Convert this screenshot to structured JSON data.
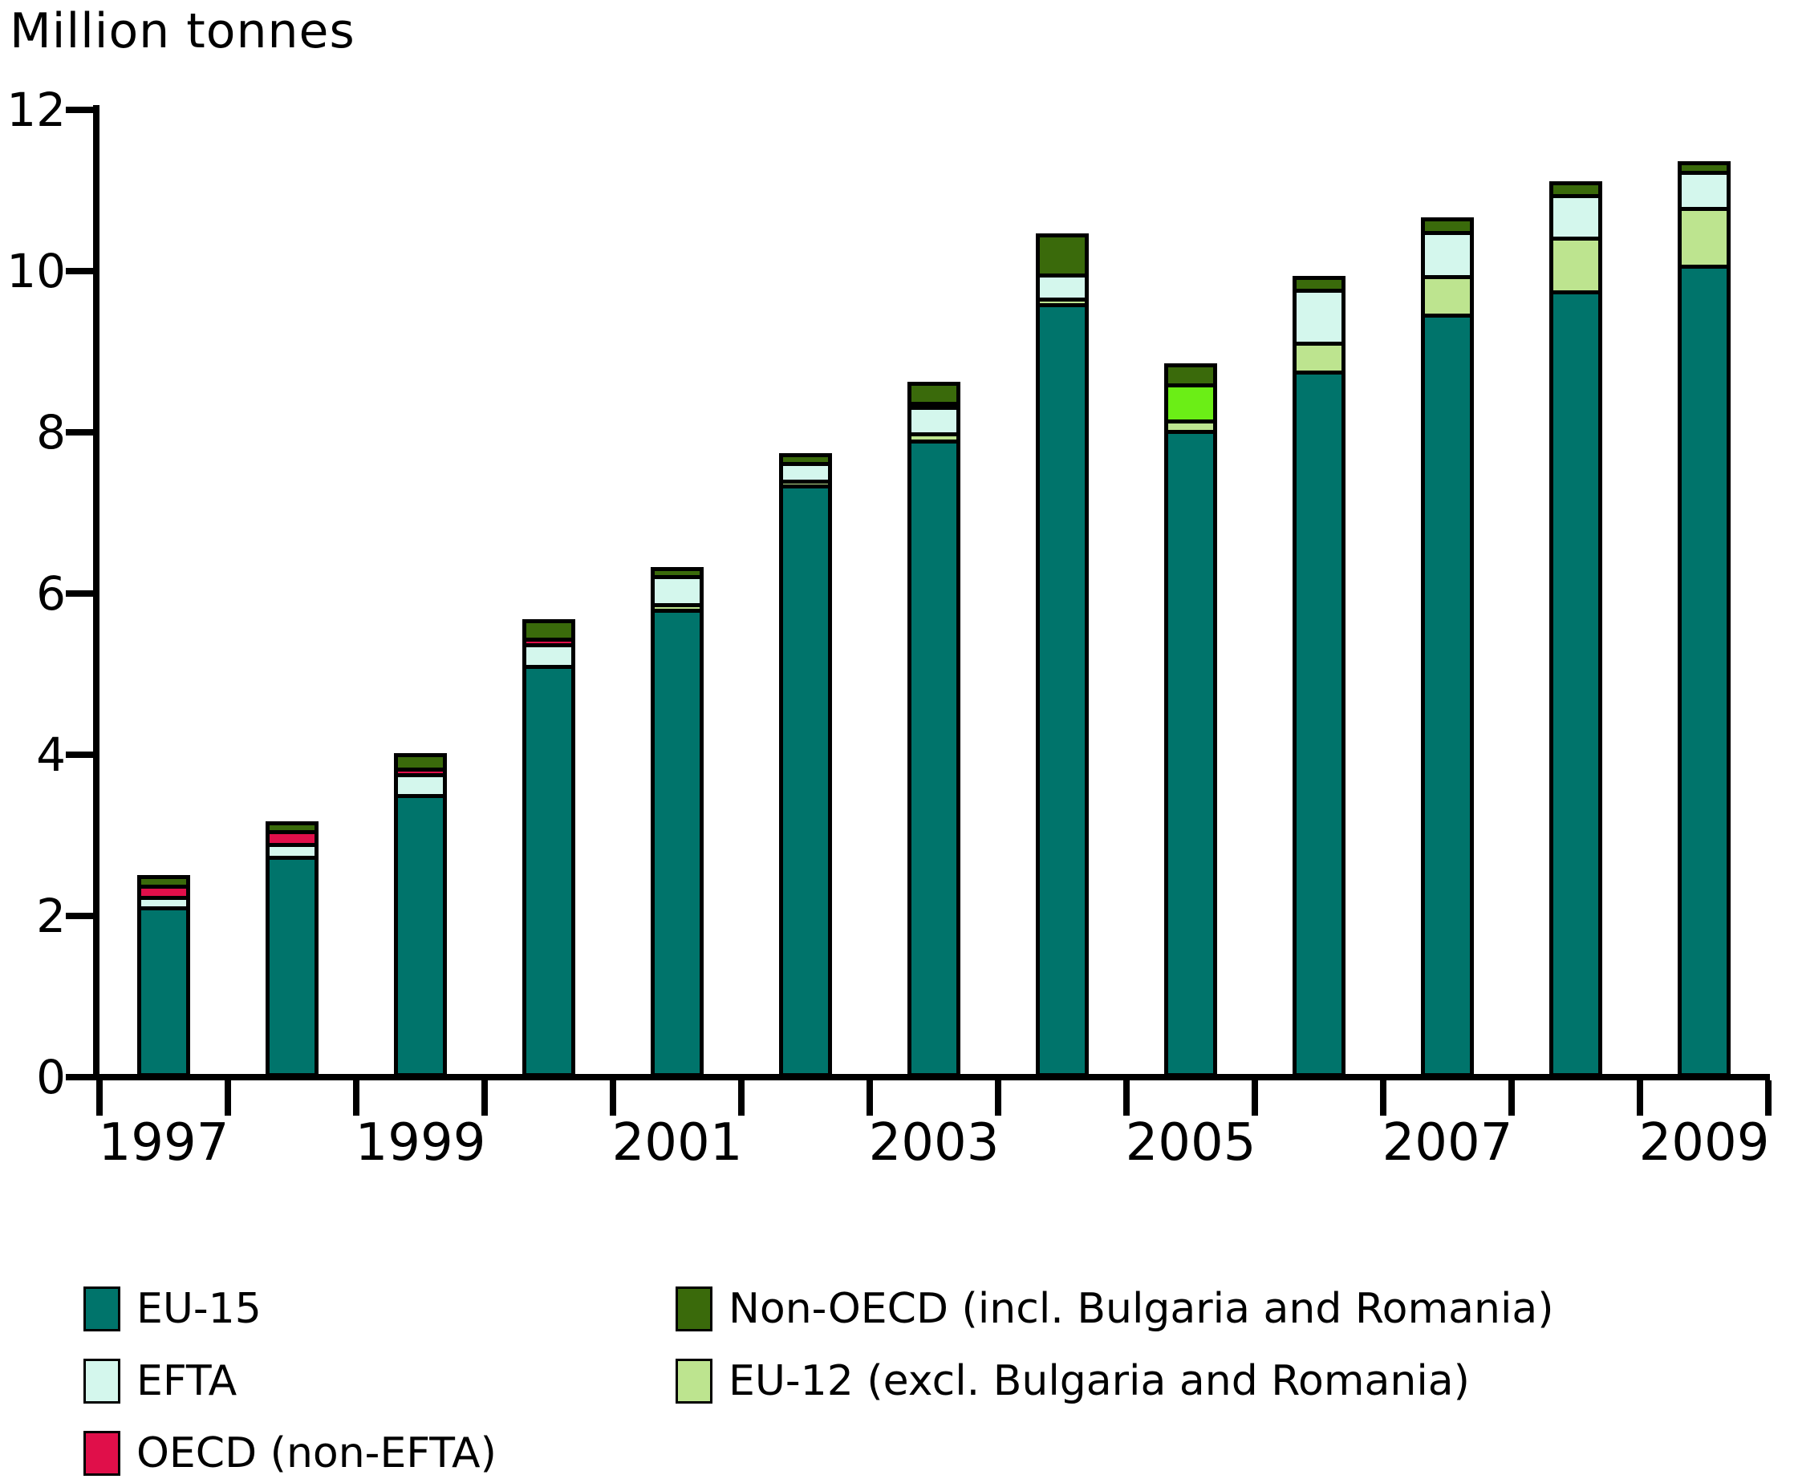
{
  "title": "Million tonnes",
  "chart_data": {
    "type": "bar",
    "stacked": true,
    "title": "Million tonnes",
    "ylabel": "Million tonnes",
    "xlabel": "",
    "grid": false,
    "legend_position": "bottom",
    "ylim": [
      0,
      12
    ],
    "yticks": [
      0,
      2,
      4,
      6,
      8,
      10,
      12
    ],
    "categories": [
      "1997",
      "1998",
      "1999",
      "2000",
      "2001",
      "2002",
      "2003",
      "2004",
      "2005",
      "2006",
      "2007",
      "2008",
      "2009"
    ],
    "x_labeled_categories": [
      "1997",
      "1999",
      "2001",
      "2003",
      "2005",
      "2007",
      "2009"
    ],
    "stack_order_bottom_to_top": [
      "EU-15",
      "EU-12 (excl. Bulgaria and Romania)",
      "EFTA",
      "OECD (non-EFTA)",
      "Non-OECD (incl. Bulgaria and Romania)"
    ],
    "series": [
      {
        "key": "eu15",
        "name": "EU-15",
        "color": "#00746b",
        "values": [
          2.07,
          2.7,
          3.46,
          5.06,
          5.76,
          7.3,
          7.86,
          9.55,
          7.98,
          8.72,
          9.42,
          9.71,
          10.03
        ]
      },
      {
        "key": "eu12",
        "name": "EU-12 (excl. Bulgaria and Romania)",
        "color": "#bde48f",
        "values": [
          0,
          0,
          0,
          0,
          0.07,
          0.06,
          0.09,
          0.07,
          0.13,
          0.36,
          0.48,
          0.67,
          0.72
        ]
      },
      {
        "key": "efta",
        "name": "EFTA",
        "color": "#d4f7ed",
        "values": [
          0.13,
          0.16,
          0.26,
          0.27,
          0.35,
          0.22,
          0.33,
          0.3,
          0.45,
          0.66,
          0.55,
          0.53,
          0.45
        ]
      },
      {
        "key": "oecd",
        "name": "OECD (non-EFTA)",
        "color": "#e00f4a",
        "values": [
          0.14,
          0.16,
          0.07,
          0.07,
          0,
          0,
          0.05,
          0,
          0,
          0,
          0,
          0,
          0
        ]
      },
      {
        "key": "nonoecd",
        "name": "Non-OECD (incl. Bulgaria and Romania)",
        "color": "#3a6a0b",
        "values": [
          0.07,
          0.06,
          0.13,
          0.18,
          0.05,
          0.06,
          0.2,
          0.45,
          0.2,
          0.11,
          0.12,
          0.11,
          0.07
        ]
      }
    ],
    "segment_color_overrides": [
      {
        "category": "2005",
        "series_key": "efta",
        "color": "#6bee16",
        "pattern_key": "efta-bright"
      }
    ]
  },
  "legend": {
    "columns": [
      {
        "items": [
          {
            "key": "eu15",
            "label": "EU-15",
            "color": "#00746b"
          },
          {
            "key": "efta",
            "label": "EFTA",
            "color": "#d4f7ed"
          },
          {
            "key": "oecd",
            "label": "OECD (non-EFTA)",
            "color": "#e00f4a"
          }
        ]
      },
      {
        "items": [
          {
            "key": "nonoecd",
            "label": "Non-OECD (incl. Bulgaria and Romania)",
            "color": "#3a6a0b"
          },
          {
            "key": "eu12",
            "label": "EU-12 (excl. Bulgaria and Romania)",
            "color": "#bde48f"
          }
        ]
      }
    ]
  }
}
